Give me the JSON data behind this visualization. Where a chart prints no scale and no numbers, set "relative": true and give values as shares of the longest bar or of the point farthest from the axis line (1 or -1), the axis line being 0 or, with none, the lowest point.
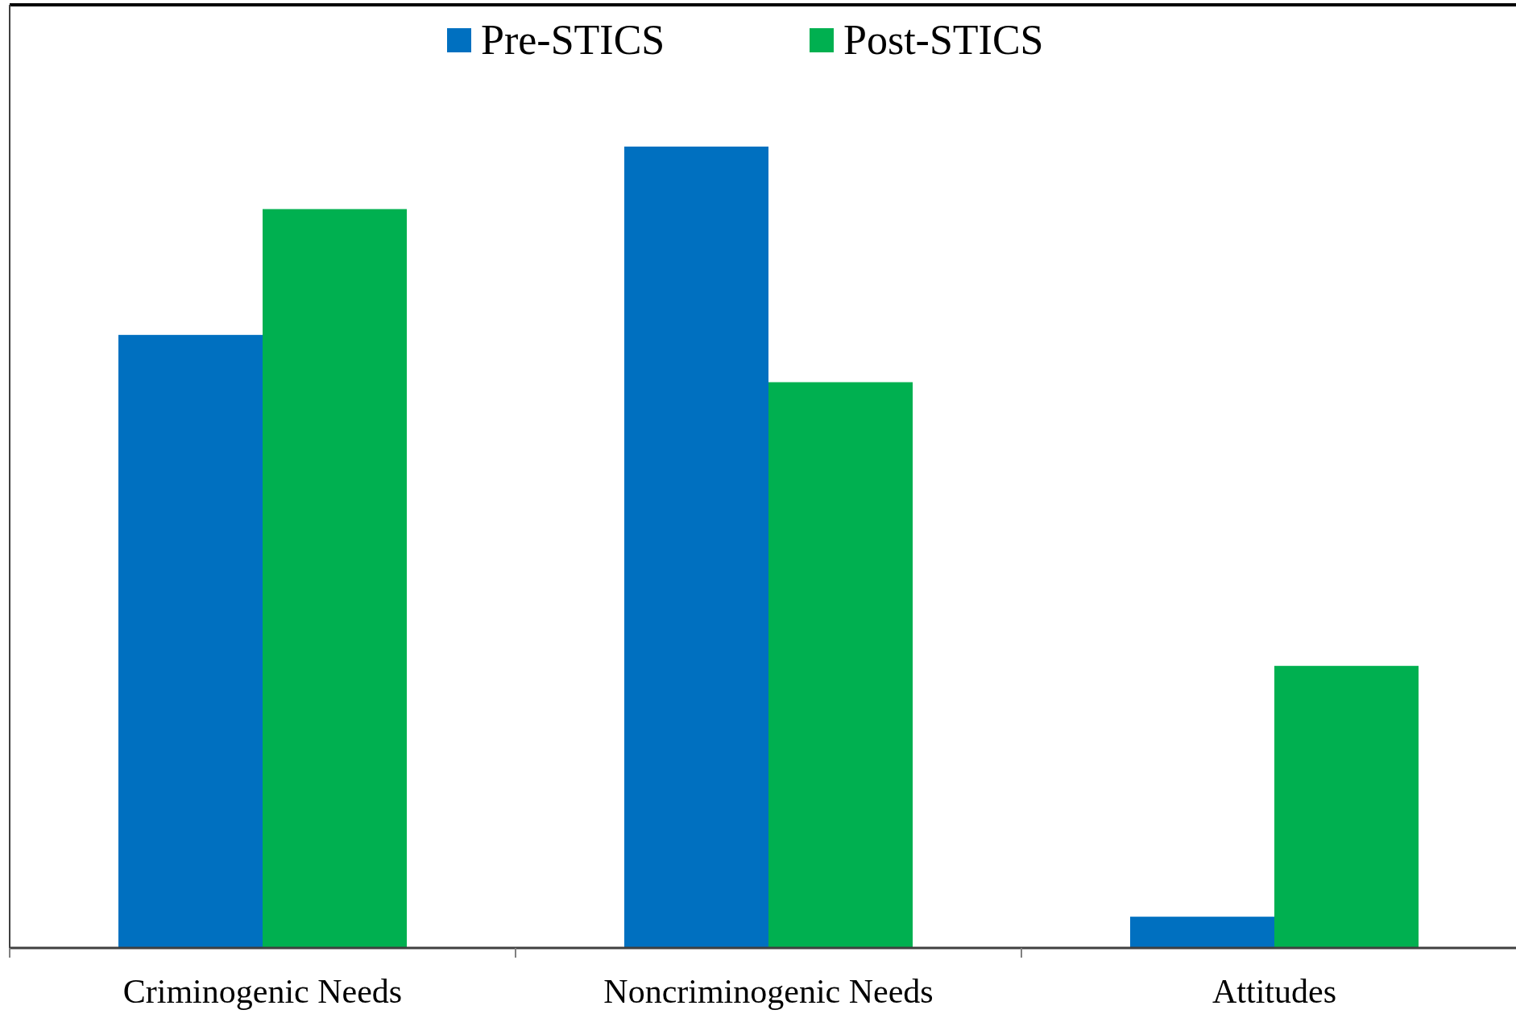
{
  "chart_data": {
    "type": "bar",
    "relative": true,
    "categories": [
      "Criminogenic Needs",
      "Noncriminogenic Needs",
      "Attitudes"
    ],
    "series": [
      {
        "name": "Pre-STICS",
        "color": "#0070c0",
        "values": [
          0.765,
          1,
          0.039
        ]
      },
      {
        "name": "Post-STICS",
        "color": "#00b050",
        "values": [
          0.922,
          0.706,
          0.352
        ]
      }
    ],
    "legend": "top"
  }
}
